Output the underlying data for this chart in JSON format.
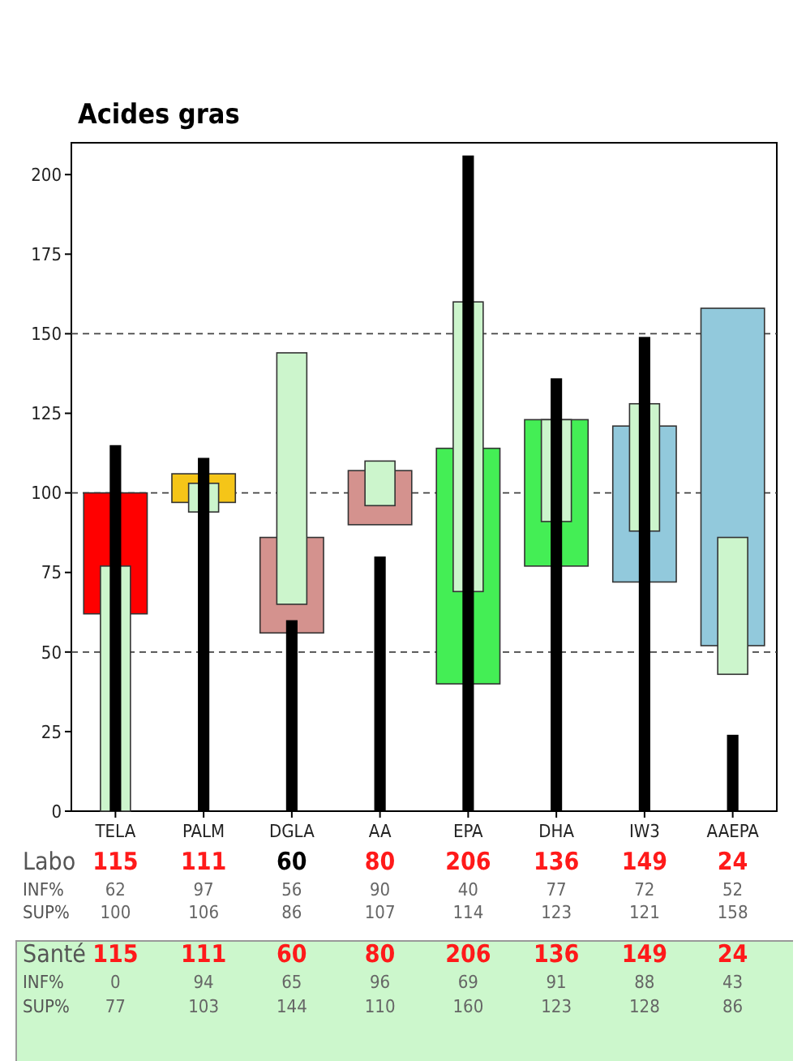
{
  "chart_data": {
    "type": "bar",
    "title": "Acides gras",
    "categories": [
      "TELA",
      "PALM",
      "DGLA",
      "AA",
      "EPA",
      "DHA",
      "IW3",
      "AAEPA"
    ],
    "series": [
      {
        "colors": [
          "#ff0000",
          "#f5c518",
          "#d4928e",
          "#d4928e",
          "#44ee55",
          "#44ee55",
          "#92c9dc",
          "#92c9dc"
        ],
        "base": [
          62,
          97,
          56,
          90,
          40,
          77,
          72,
          52
        ],
        "values": [
          38,
          9,
          30,
          17,
          74,
          46,
          49,
          106
        ]
      },
      {
        "color": "#ccf5cc",
        "base": [
          0,
          94,
          65,
          96,
          69,
          91,
          88,
          43
        ],
        "values": [
          77,
          9,
          79,
          14,
          91,
          32,
          40,
          43
        ]
      },
      {
        "color": "#000000",
        "values": [
          115,
          111,
          60,
          80,
          206,
          136,
          149,
          24
        ],
        "value_labels": [
          "115",
          "111",
          "60",
          "80",
          "206",
          "136",
          "149",
          "24"
        ]
      }
    ],
    "ylim": [
      0,
      210
    ],
    "yticks": [
      0,
      25,
      50,
      75,
      100,
      125,
      150,
      175,
      200
    ],
    "ref_lines": [
      {
        "axis": "y",
        "value": 50,
        "line_style": "dashed"
      },
      {
        "axis": "y",
        "value": 100,
        "line_style": "dashed"
      },
      {
        "axis": "y",
        "value": 150,
        "line_style": "dashed"
      }
    ],
    "annotations": [
      "Labo",
      "INF%",
      "62",
      "97",
      "56",
      "90",
      "40",
      "77",
      "72",
      "52",
      "SUP%",
      "100",
      "106",
      "86",
      "107",
      "114",
      "123",
      "121",
      "158",
      "Santé",
      "115",
      "111",
      "60",
      "80",
      "206",
      "136",
      "149",
      "24",
      "INF%",
      "0",
      "94",
      "65",
      "96",
      "69",
      "91",
      "88",
      "43",
      "SUP%",
      "77",
      "103",
      "144",
      "110",
      "160",
      "123",
      "128",
      "86"
    ]
  }
}
